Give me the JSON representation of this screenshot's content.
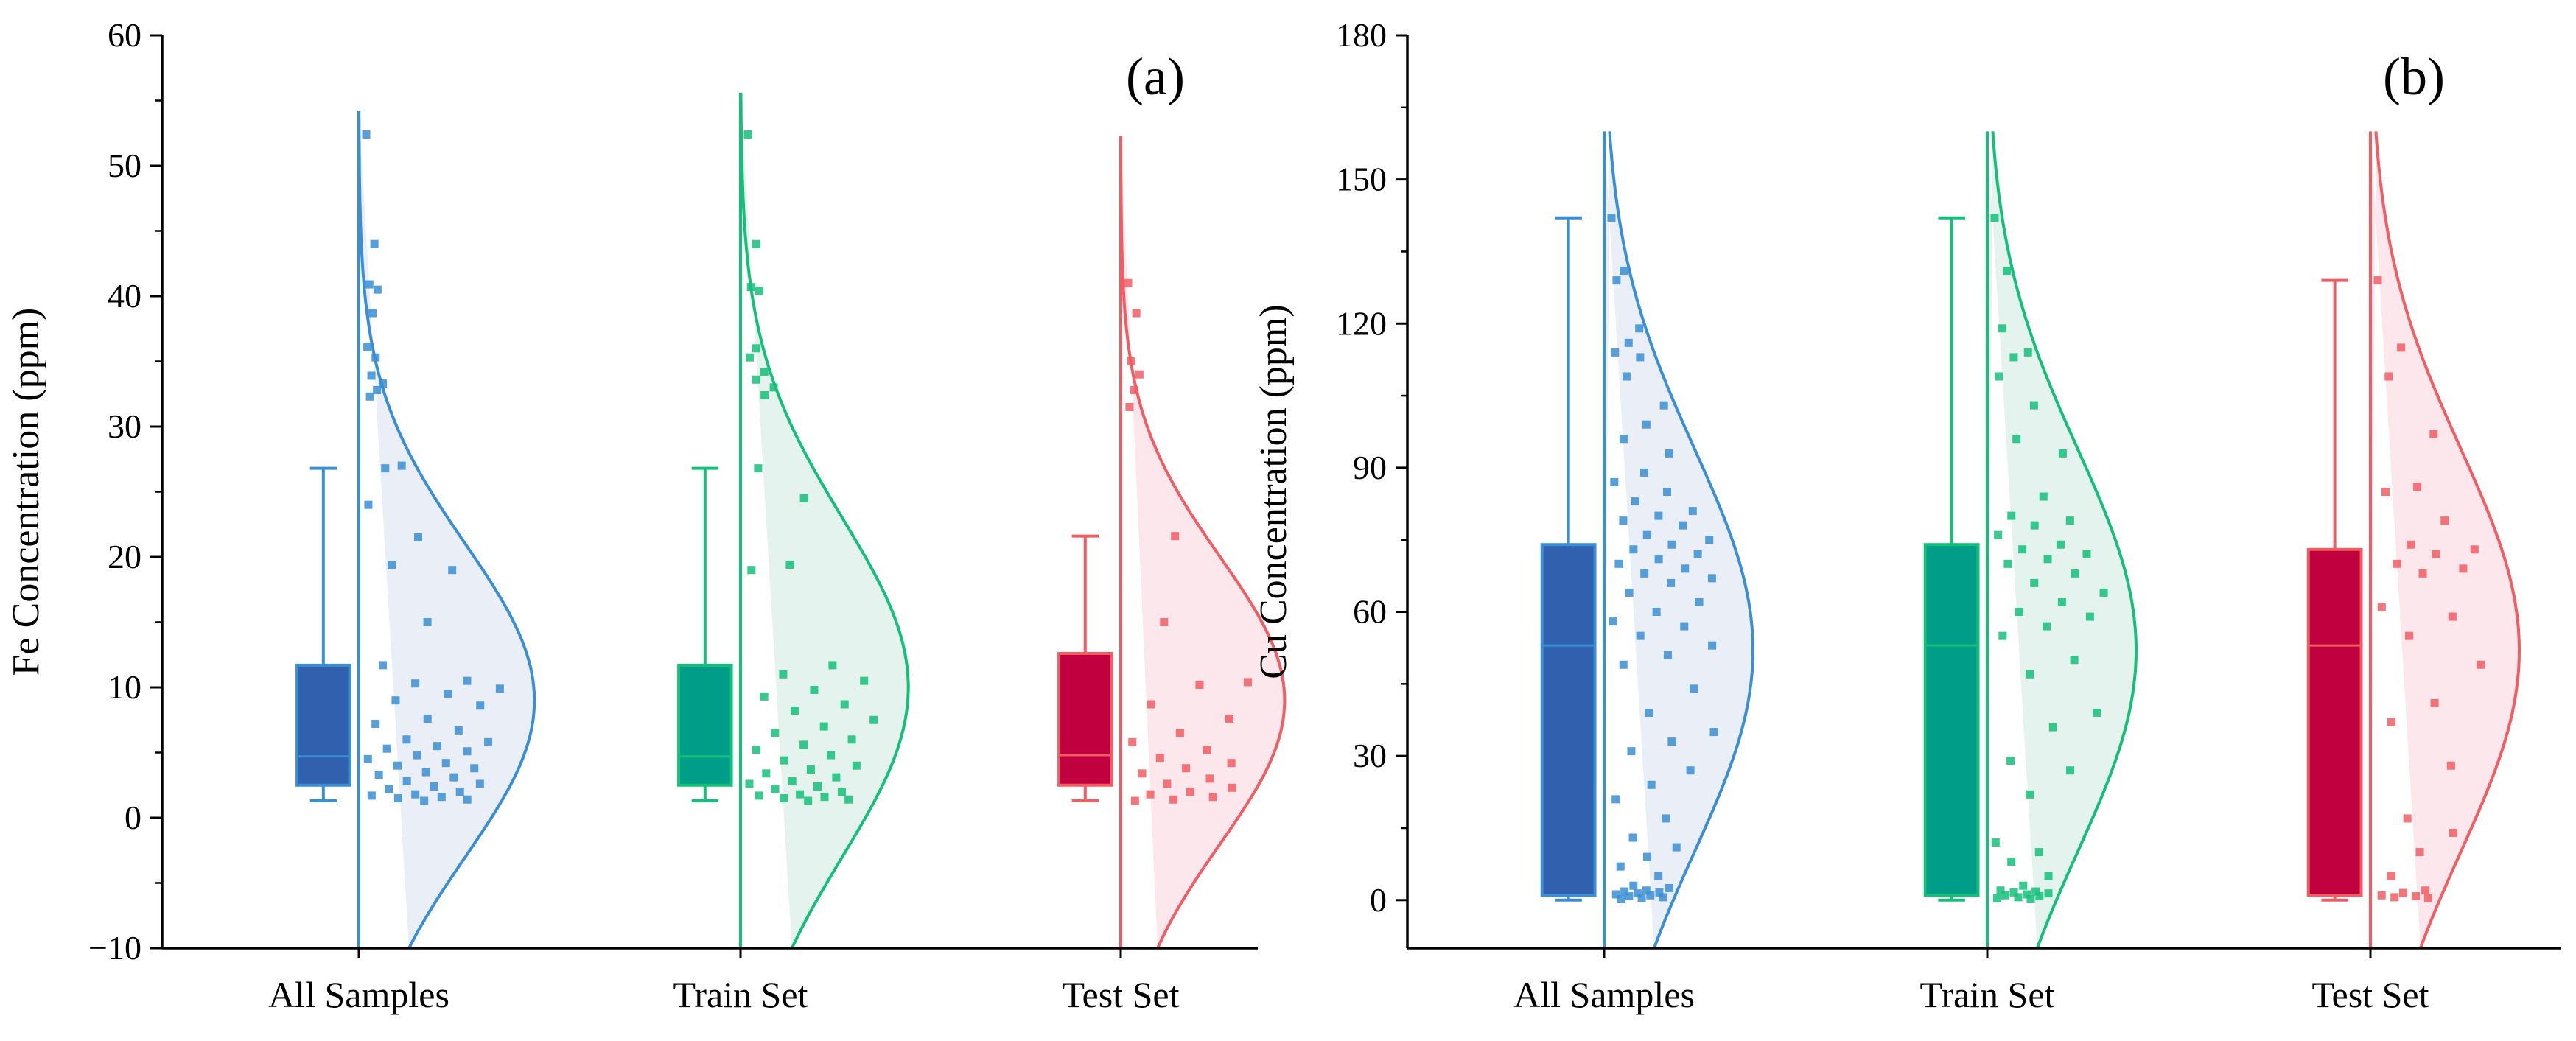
{
  "colors": {
    "all_box": "#3060AE",
    "all_line": "#3A8ED4",
    "all_fill": "#E9EEF7",
    "train_box": "#009E88",
    "train_line": "#14C079",
    "train_fill": "#E5F3EF",
    "test_box": "#C10040",
    "test_line": "#F25D63",
    "test_fill": "#FBE7EC"
  },
  "chart_data": [
    {
      "type": "raincloud-box",
      "panel_label": "(a)",
      "ylabel": "Fe Concentration (ppm)",
      "ylim": [
        -10,
        60
      ],
      "yticks": [
        -10,
        0,
        10,
        20,
        30,
        40,
        50,
        60
      ],
      "ytick_labels": [
        "−10",
        "0",
        "10",
        "20",
        "30",
        "40",
        "50",
        "60"
      ],
      "categories": [
        "All Samples",
        "Train Set",
        "Test Set"
      ],
      "series": [
        {
          "name": "All Samples",
          "color_key": "all",
          "box": {
            "whisker_low": 1.3,
            "q1": 2.5,
            "median": 4.7,
            "q3": 11.7,
            "whisker_high": 26.8
          },
          "density": {
            "mean": 9,
            "sd": 12,
            "peak_width": 0.45,
            "range": [
              -10,
              54.2
            ]
          },
          "points": [
            52.4,
            44,
            40.9,
            40.5,
            38.7,
            36.1,
            35.3,
            33.9,
            33.3,
            32.8,
            32.3,
            27,
            26.8,
            24,
            21.5,
            19.4,
            19,
            15,
            11.7,
            10.5,
            10.3,
            9.9,
            9.5,
            9,
            8.6,
            7.6,
            7.2,
            6.7,
            6,
            5.8,
            5.5,
            5.3,
            5.1,
            4.8,
            4.5,
            4.2,
            4,
            3.8,
            3.5,
            3.3,
            3.1,
            2.8,
            2.6,
            2.4,
            2.2,
            2,
            1.8,
            1.7,
            1.6,
            1.5,
            1.4,
            1.3
          ]
        },
        {
          "name": "Train Set",
          "color_key": "train",
          "box": {
            "whisker_low": 1.3,
            "q1": 2.5,
            "median": 4.7,
            "q3": 11.7,
            "whisker_high": 26.8
          },
          "density": {
            "mean": 10,
            "sd": 13,
            "peak_width": 0.43,
            "range": [
              -10,
              55.6
            ]
          },
          "points": [
            52.4,
            44,
            40.7,
            40.4,
            36,
            35.3,
            34.2,
            33.6,
            33,
            32.4,
            26.8,
            24.5,
            19.4,
            19,
            11.7,
            11,
            10.5,
            9.8,
            9.3,
            8.7,
            8.2,
            7.5,
            7,
            6.5,
            6,
            5.6,
            5.2,
            4.8,
            4.4,
            4,
            3.7,
            3.4,
            3.1,
            2.8,
            2.6,
            2.4,
            2.2,
            2,
            1.8,
            1.7,
            1.6,
            1.5,
            1.4,
            1.3
          ]
        },
        {
          "name": "Test Set",
          "color_key": "test",
          "box": {
            "whisker_low": 1.3,
            "q1": 2.5,
            "median": 4.8,
            "q3": 12.6,
            "whisker_high": 21.6
          },
          "density": {
            "mean": 9,
            "sd": 11,
            "peak_width": 0.42,
            "range": [
              -10,
              52.3
            ]
          },
          "points": [
            41,
            38.7,
            35,
            34,
            32.8,
            31.5,
            21.6,
            15,
            10.4,
            10.2,
            8.7,
            7.6,
            6.5,
            5.8,
            5.2,
            4.6,
            4.2,
            3.8,
            3.4,
            3,
            2.6,
            2.3,
            2,
            1.8,
            1.6,
            1.4,
            1.3
          ]
        }
      ]
    },
    {
      "type": "raincloud-box",
      "panel_label": "(b)",
      "ylabel": "Cu Concentration (ppm)",
      "ylim": [
        -10,
        180
      ],
      "yticks": [
        0,
        30,
        60,
        90,
        120,
        150,
        180
      ],
      "ytick_labels": [
        "0",
        "30",
        "60",
        "90",
        "120",
        "150",
        "180"
      ],
      "categories": [
        "All Samples",
        "Train Set",
        "Test Set"
      ],
      "series": [
        {
          "name": "All Samples",
          "color_key": "all",
          "box": {
            "whisker_low": 0,
            "q1": 1,
            "median": 53,
            "q3": 74,
            "whisker_high": 142
          },
          "density": {
            "mean": 52,
            "sd": 42,
            "peak_width": 0.38,
            "range": [
              -10,
              160
            ]
          },
          "points": [
            142,
            131,
            129,
            119,
            116,
            114,
            113,
            109,
            103,
            99,
            96,
            93,
            89,
            87,
            85,
            83,
            81,
            80,
            79,
            78,
            76,
            75,
            74,
            73,
            72,
            71,
            70,
            69,
            68,
            67,
            66,
            64,
            62,
            60,
            58,
            57,
            55,
            53,
            51,
            49,
            44,
            39,
            35,
            33,
            31,
            27,
            24,
            21,
            17,
            13,
            11,
            9,
            7,
            5,
            3,
            2.5,
            2,
            1.8,
            1.6,
            1.4,
            1.2,
            1,
            0.8,
            0.6,
            0.4,
            0.2
          ]
        },
        {
          "name": "Train Set",
          "color_key": "train",
          "box": {
            "whisker_low": 0,
            "q1": 1,
            "median": 53,
            "q3": 74,
            "whisker_high": 142
          },
          "density": {
            "mean": 52,
            "sd": 42,
            "peak_width": 0.38,
            "range": [
              -10,
              160
            ]
          },
          "points": [
            142,
            131,
            119,
            114,
            113,
            109,
            103,
            96,
            93,
            84,
            80,
            79,
            78,
            76,
            74,
            73,
            72,
            71,
            70,
            68,
            66,
            64,
            62,
            60,
            59,
            57,
            55,
            50,
            47,
            39,
            36,
            29,
            27,
            22,
            12,
            10,
            8,
            5,
            3,
            2,
            1.8,
            1.6,
            1.4,
            1.2,
            1,
            0.8,
            0.6,
            0.4,
            0.2
          ]
        },
        {
          "name": "Test Set",
          "color_key": "test",
          "box": {
            "whisker_low": 0,
            "q1": 1,
            "median": 53,
            "q3": 73,
            "whisker_high": 129
          },
          "density": {
            "mean": 52,
            "sd": 42,
            "peak_width": 0.38,
            "range": [
              -10,
              160
            ]
          },
          "points": [
            129,
            115,
            109,
            97,
            86,
            85,
            79,
            74,
            73,
            72,
            70,
            69,
            68,
            61,
            59,
            55,
            49,
            41,
            37,
            28,
            17,
            14,
            10,
            5,
            2,
            1.5,
            1,
            0.8,
            0.6,
            0.4
          ]
        }
      ]
    }
  ]
}
